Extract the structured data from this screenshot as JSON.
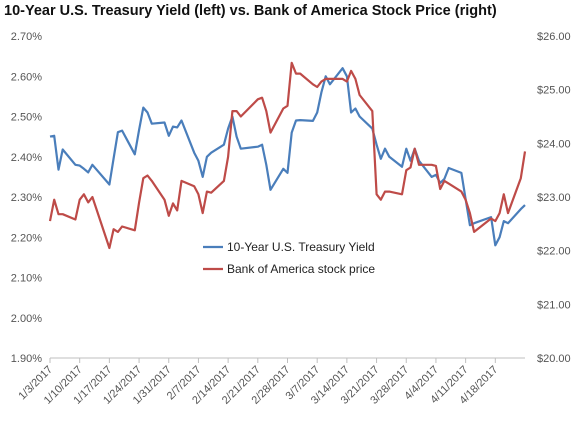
{
  "chart_data": {
    "type": "line",
    "title": "10-Year U.S. Treasury Yield (left) vs. Bank of America Stock Price (right)",
    "x_labels": [
      "1/3/2017",
      "1/10/2017",
      "1/17/2017",
      "1/24/2017",
      "1/31/2017",
      "2/7/2017",
      "2/14/2017",
      "2/21/2017",
      "2/28/2017",
      "3/7/2017",
      "3/14/2017",
      "3/21/2017",
      "3/28/2017",
      "4/4/2017",
      "4/11/2017",
      "4/18/2017"
    ],
    "x_range": [
      "2017-01-03",
      "2017-04-25"
    ],
    "y_left": {
      "ticks": [
        "1.90%",
        "2.00%",
        "2.10%",
        "2.20%",
        "2.30%",
        "2.40%",
        "2.50%",
        "2.60%",
        "2.70%"
      ],
      "min": 1.9,
      "max": 2.7
    },
    "y_right": {
      "ticks": [
        "$20.00",
        "$21.00",
        "$22.00",
        "$23.00",
        "$24.00",
        "$25.00",
        "$26.00"
      ],
      "min": 20,
      "max": 26
    },
    "legend_position": "center",
    "grid": false,
    "series": [
      {
        "name": "10-Year U.S. Treasury Yield",
        "axis": "left",
        "color": "#4a7ebb",
        "points": [
          [
            "2017-01-03",
            2.45
          ],
          [
            "2017-01-04",
            2.452
          ],
          [
            "2017-01-05",
            2.368
          ],
          [
            "2017-01-06",
            2.418
          ],
          [
            "2017-01-09",
            2.38
          ],
          [
            "2017-01-10",
            2.378
          ],
          [
            "2017-01-11",
            2.37
          ],
          [
            "2017-01-12",
            2.361
          ],
          [
            "2017-01-13",
            2.38
          ],
          [
            "2017-01-17",
            2.331
          ],
          [
            "2017-01-18",
            2.396
          ],
          [
            "2017-01-19",
            2.461
          ],
          [
            "2017-01-20",
            2.465
          ],
          [
            "2017-01-23",
            2.406
          ],
          [
            "2017-01-24",
            2.467
          ],
          [
            "2017-01-25",
            2.522
          ],
          [
            "2017-01-26",
            2.51
          ],
          [
            "2017-01-27",
            2.482
          ],
          [
            "2017-01-30",
            2.485
          ],
          [
            "2017-01-31",
            2.452
          ],
          [
            "2017-02-01",
            2.475
          ],
          [
            "2017-02-02",
            2.473
          ],
          [
            "2017-02-03",
            2.49
          ],
          [
            "2017-02-06",
            2.41
          ],
          [
            "2017-02-07",
            2.39
          ],
          [
            "2017-02-08",
            2.35
          ],
          [
            "2017-02-09",
            2.4
          ],
          [
            "2017-02-10",
            2.41
          ],
          [
            "2017-02-13",
            2.43
          ],
          [
            "2017-02-14",
            2.47
          ],
          [
            "2017-02-15",
            2.5
          ],
          [
            "2017-02-16",
            2.45
          ],
          [
            "2017-02-17",
            2.42
          ],
          [
            "2017-02-21",
            2.425
          ],
          [
            "2017-02-22",
            2.43
          ],
          [
            "2017-02-23",
            2.38
          ],
          [
            "2017-02-24",
            2.318
          ],
          [
            "2017-02-27",
            2.37
          ],
          [
            "2017-02-28",
            2.36
          ],
          [
            "2017-03-01",
            2.46
          ],
          [
            "2017-03-02",
            2.49
          ],
          [
            "2017-03-03",
            2.491
          ],
          [
            "2017-03-06",
            2.489
          ],
          [
            "2017-03-07",
            2.51
          ],
          [
            "2017-03-08",
            2.56
          ],
          [
            "2017-03-09",
            2.6
          ],
          [
            "2017-03-10",
            2.58
          ],
          [
            "2017-03-13",
            2.62
          ],
          [
            "2017-03-14",
            2.6
          ],
          [
            "2017-03-15",
            2.51
          ],
          [
            "2017-03-16",
            2.52
          ],
          [
            "2017-03-17",
            2.5
          ],
          [
            "2017-03-20",
            2.47
          ],
          [
            "2017-03-21",
            2.43
          ],
          [
            "2017-03-22",
            2.395
          ],
          [
            "2017-03-23",
            2.42
          ],
          [
            "2017-03-24",
            2.4
          ],
          [
            "2017-03-27",
            2.375
          ],
          [
            "2017-03-28",
            2.42
          ],
          [
            "2017-03-29",
            2.39
          ],
          [
            "2017-03-30",
            2.42
          ],
          [
            "2017-03-31",
            2.39
          ],
          [
            "2017-04-03",
            2.35
          ],
          [
            "2017-04-04",
            2.355
          ],
          [
            "2017-04-05",
            2.335
          ],
          [
            "2017-04-06",
            2.345
          ],
          [
            "2017-04-07",
            2.372
          ],
          [
            "2017-04-10",
            2.36
          ],
          [
            "2017-04-11",
            2.295
          ],
          [
            "2017-04-12",
            2.23
          ],
          [
            "2017-04-13",
            2.235
          ],
          [
            "2017-04-17",
            2.25
          ],
          [
            "2017-04-18",
            2.18
          ],
          [
            "2017-04-19",
            2.2
          ],
          [
            "2017-04-20",
            2.24
          ],
          [
            "2017-04-21",
            2.235
          ],
          [
            "2017-04-24",
            2.27
          ],
          [
            "2017-04-25",
            2.28
          ]
        ]
      },
      {
        "name": "Bank of America stock price",
        "axis": "right",
        "color": "#be4b48",
        "points": [
          [
            "2017-01-03",
            22.55
          ],
          [
            "2017-01-04",
            22.95
          ],
          [
            "2017-01-05",
            22.68
          ],
          [
            "2017-01-06",
            22.68
          ],
          [
            "2017-01-09",
            22.58
          ],
          [
            "2017-01-10",
            22.95
          ],
          [
            "2017-01-11",
            23.05
          ],
          [
            "2017-01-12",
            22.9
          ],
          [
            "2017-01-13",
            23.0
          ],
          [
            "2017-01-17",
            22.05
          ],
          [
            "2017-01-18",
            22.4
          ],
          [
            "2017-01-19",
            22.35
          ],
          [
            "2017-01-20",
            22.45
          ],
          [
            "2017-01-23",
            22.38
          ],
          [
            "2017-01-24",
            22.9
          ],
          [
            "2017-01-25",
            23.35
          ],
          [
            "2017-01-26",
            23.4
          ],
          [
            "2017-01-27",
            23.3
          ],
          [
            "2017-01-30",
            22.95
          ],
          [
            "2017-01-31",
            22.65
          ],
          [
            "2017-02-01",
            22.88
          ],
          [
            "2017-02-02",
            22.75
          ],
          [
            "2017-02-03",
            23.3
          ],
          [
            "2017-02-06",
            23.2
          ],
          [
            "2017-02-07",
            23.05
          ],
          [
            "2017-02-08",
            22.7
          ],
          [
            "2017-02-09",
            23.1
          ],
          [
            "2017-02-10",
            23.08
          ],
          [
            "2017-02-13",
            23.3
          ],
          [
            "2017-02-14",
            23.75
          ],
          [
            "2017-02-15",
            24.6
          ],
          [
            "2017-02-16",
            24.6
          ],
          [
            "2017-02-17",
            24.5
          ],
          [
            "2017-02-21",
            24.82
          ],
          [
            "2017-02-22",
            24.85
          ],
          [
            "2017-02-23",
            24.6
          ],
          [
            "2017-02-24",
            24.2
          ],
          [
            "2017-02-27",
            24.65
          ],
          [
            "2017-02-28",
            24.7
          ],
          [
            "2017-03-01",
            25.5
          ],
          [
            "2017-03-02",
            25.3
          ],
          [
            "2017-03-03",
            25.3
          ],
          [
            "2017-03-06",
            25.1
          ],
          [
            "2017-03-07",
            25.05
          ],
          [
            "2017-03-08",
            25.15
          ],
          [
            "2017-03-09",
            25.2
          ],
          [
            "2017-03-10",
            25.2
          ],
          [
            "2017-03-13",
            25.2
          ],
          [
            "2017-03-14",
            25.15
          ],
          [
            "2017-03-15",
            25.35
          ],
          [
            "2017-03-16",
            25.2
          ],
          [
            "2017-03-17",
            24.9
          ],
          [
            "2017-03-20",
            24.6
          ],
          [
            "2017-03-21",
            23.05
          ],
          [
            "2017-03-22",
            22.95
          ],
          [
            "2017-03-23",
            23.1
          ],
          [
            "2017-03-24",
            23.1
          ],
          [
            "2017-03-27",
            23.05
          ],
          [
            "2017-03-28",
            23.5
          ],
          [
            "2017-03-29",
            23.55
          ],
          [
            "2017-03-30",
            23.9
          ],
          [
            "2017-03-31",
            23.6
          ],
          [
            "2017-04-03",
            23.6
          ],
          [
            "2017-04-04",
            23.58
          ],
          [
            "2017-04-05",
            23.15
          ],
          [
            "2017-04-06",
            23.3
          ],
          [
            "2017-04-07",
            23.25
          ],
          [
            "2017-04-10",
            23.1
          ],
          [
            "2017-04-11",
            22.95
          ],
          [
            "2017-04-12",
            22.7
          ],
          [
            "2017-04-13",
            22.35
          ],
          [
            "2017-04-17",
            22.6
          ],
          [
            "2017-04-18",
            22.55
          ],
          [
            "2017-04-19",
            22.7
          ],
          [
            "2017-04-20",
            23.05
          ],
          [
            "2017-04-21",
            22.7
          ],
          [
            "2017-04-24",
            23.35
          ],
          [
            "2017-04-25",
            23.85
          ]
        ]
      }
    ]
  }
}
